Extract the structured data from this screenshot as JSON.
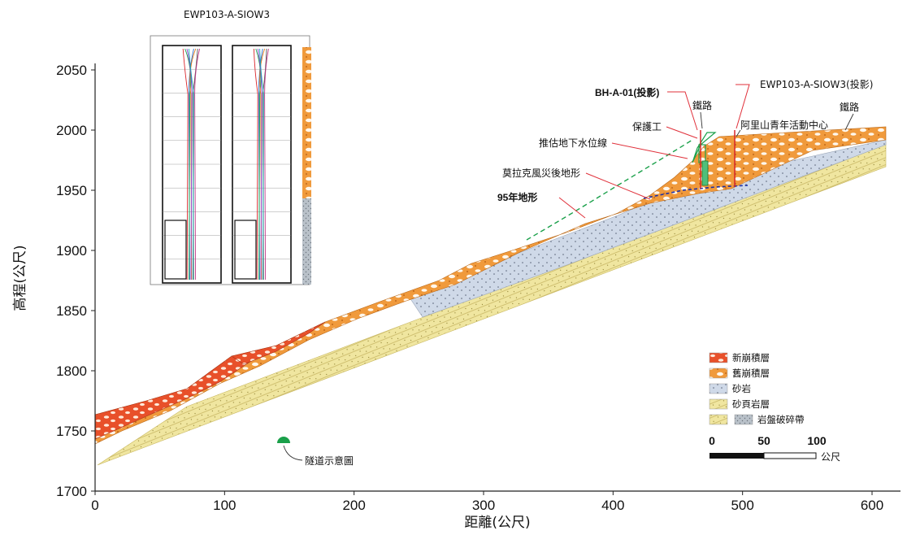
{
  "inset": {
    "title": "EWP103-A-SIOW3"
  },
  "chart_data": {
    "type": "cross-section",
    "ylabel": "高程(公尺)",
    "xlabel": "距離(公尺)",
    "xlim": [
      0,
      620
    ],
    "ylim": [
      1700,
      2065
    ],
    "x_ticks": [
      "0",
      "100",
      "200",
      "300",
      "400",
      "500",
      "600"
    ],
    "y_ticks": [
      "1700",
      "1750",
      "1800",
      "1850",
      "1900",
      "1950",
      "2000",
      "2050"
    ]
  },
  "annotations": {
    "bh": "BH-A-01(投影)",
    "ewp": "EWP103-A-SIOW3(投影)",
    "rail1": "鐵路",
    "rail2": "鐵路",
    "protect": "保護工",
    "youth": "阿里山青年活動中心",
    "water": "推估地下水位線",
    "morakot": "莫拉克風災後地形",
    "y95": "95年地形",
    "tunnel": "隧道示意圖"
  },
  "legend": {
    "items": [
      "新崩積層",
      "舊崩積層",
      "砂岩",
      "砂頁岩層",
      "岩盤破碎帶"
    ],
    "colors": [
      "#e8502a",
      "#f09a3c",
      "#cfd9e8",
      "#f0e6a0",
      "#b9c1c9"
    ]
  },
  "scale": {
    "labels": [
      "0",
      "50",
      "100"
    ],
    "unit": "公尺"
  }
}
